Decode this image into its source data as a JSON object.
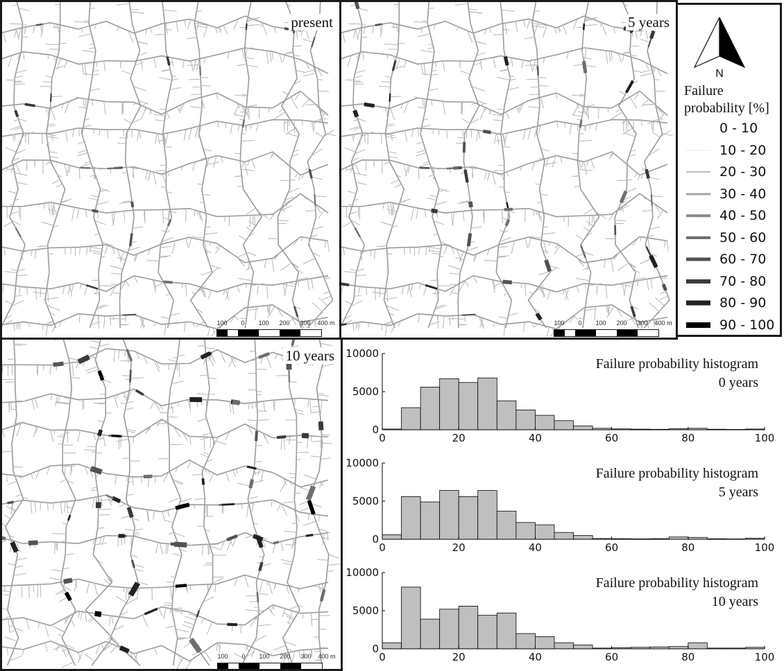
{
  "maps": [
    {
      "label": "present",
      "scale": {
        "ticks": [
          "100",
          "0",
          "100",
          "200",
          "300",
          "400 m"
        ]
      }
    },
    {
      "label": "5 years",
      "scale": {
        "ticks": [
          "100",
          "0",
          "100",
          "200",
          "300",
          "400 m"
        ]
      }
    },
    {
      "label": "10 years",
      "scale": {
        "ticks": [
          "100",
          "0",
          "100",
          "200",
          "300",
          "400 m"
        ]
      }
    }
  ],
  "legend": {
    "north_label": "N",
    "title_line1": "Failure",
    "title_line2": "probability [%]",
    "items": [
      {
        "label": "0 - 10",
        "color": "#ffffff"
      },
      {
        "label": "10 - 20",
        "color": "#e6e6e6"
      },
      {
        "label": "20 - 30",
        "color": "#bdbdbd"
      },
      {
        "label": "30 - 40",
        "color": "#a3a3a3"
      },
      {
        "label": "40 - 50",
        "color": "#8a8a8a"
      },
      {
        "label": "50 - 60",
        "color": "#6e6e6e"
      },
      {
        "label": "60 - 70",
        "color": "#525252"
      },
      {
        "label": "70 - 80",
        "color": "#3a3a3a"
      },
      {
        "label": "80 - 90",
        "color": "#222222"
      },
      {
        "label": "90 - 100",
        "color": "#000000"
      }
    ]
  },
  "chart_data": [
    {
      "type": "bar",
      "title": "Failure probability histogram",
      "subtitle": "0 years",
      "bin_edges": [
        0,
        5,
        10,
        15,
        20,
        25,
        30,
        35,
        40,
        45,
        50,
        55,
        60,
        65,
        70,
        75,
        80,
        85,
        90,
        95,
        100
      ],
      "values": [
        100,
        2900,
        5600,
        6700,
        6200,
        6800,
        3800,
        2600,
        1900,
        1200,
        500,
        200,
        120,
        80,
        60,
        150,
        200,
        70,
        50,
        100
      ],
      "xlim": [
        0,
        100
      ],
      "ylim": [
        0,
        10000
      ],
      "xticks": [
        "0",
        "20",
        "40",
        "60",
        "80",
        "100"
      ],
      "yticks": [
        "0",
        "5000",
        "10000"
      ],
      "bar_color": "#bfbfbf"
    },
    {
      "type": "bar",
      "title": "Failure probability histogram",
      "subtitle": "5 years",
      "bin_edges": [
        0,
        5,
        10,
        15,
        20,
        25,
        30,
        35,
        40,
        45,
        50,
        55,
        60,
        65,
        70,
        75,
        80,
        85,
        90,
        95,
        100
      ],
      "values": [
        600,
        5600,
        4900,
        6400,
        5600,
        6400,
        3700,
        2200,
        1900,
        900,
        500,
        100,
        80,
        60,
        80,
        300,
        250,
        70,
        50,
        150
      ],
      "xlim": [
        0,
        100
      ],
      "ylim": [
        0,
        10000
      ],
      "xticks": [
        "0",
        "20",
        "40",
        "60",
        "80",
        "100"
      ],
      "yticks": [
        "0",
        "5000",
        "10000"
      ],
      "bar_color": "#bfbfbf"
    },
    {
      "type": "bar",
      "title": "Failure probability histogram",
      "subtitle": "10 years",
      "bin_edges": [
        0,
        5,
        10,
        15,
        20,
        25,
        30,
        35,
        40,
        45,
        50,
        55,
        60,
        65,
        70,
        75,
        80,
        85,
        90,
        95,
        100
      ],
      "values": [
        800,
        8100,
        3900,
        5200,
        5600,
        4400,
        4700,
        2000,
        1600,
        800,
        500,
        100,
        150,
        200,
        250,
        300,
        800,
        100,
        100,
        200
      ],
      "xlim": [
        0,
        100
      ],
      "ylim": [
        0,
        10000
      ],
      "xticks": [
        "0",
        "20",
        "40",
        "60",
        "80",
        "100"
      ],
      "yticks": [
        "0",
        "5000",
        "10000"
      ],
      "bar_color": "#bfbfbf"
    }
  ]
}
